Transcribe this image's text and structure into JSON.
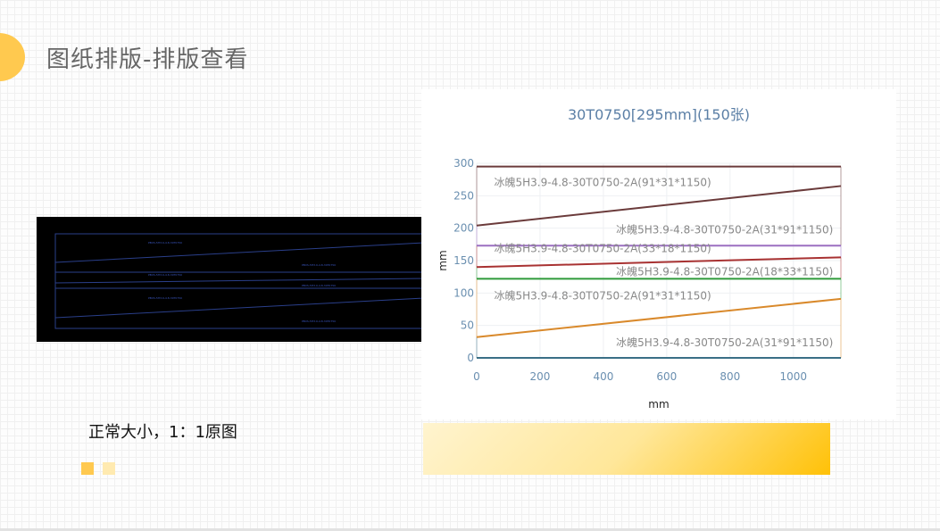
{
  "page": {
    "title": "图纸排版-排版查看",
    "caption": "正常大小，1：1原图"
  },
  "colors": {
    "accent": "#ffc94f",
    "chart_title": "#5b7fa6"
  },
  "preview": {
    "labels": [
      "PBXS-5H3.9-4.8-30T0750",
      "PBXS-5H3.9-4.8-30T0750",
      "PBXS-5H3.9-4.8-30T0750",
      "PBXS-5H3.9-4.8-30T0750",
      "PBXS-5H3.9-4.8-30T0750",
      "PBXS-5H3.9-4.8-30T0750"
    ]
  },
  "chart_data": {
    "type": "line",
    "title": "30T0750[295mm](150张)",
    "xlabel": "mm",
    "ylabel": "mm",
    "xlim": [
      0,
      1150
    ],
    "ylim": [
      0,
      300
    ],
    "xticks": [
      0,
      200,
      400,
      600,
      800,
      1000
    ],
    "yticks": [
      0,
      50,
      100,
      150,
      200,
      250,
      300
    ],
    "grid": true,
    "series": [
      {
        "x": [
          0,
          1150
        ],
        "y": [
          295,
          295
        ],
        "color": "#6b3b3b"
      },
      {
        "x": [
          0,
          1150
        ],
        "y": [
          204,
          265
        ],
        "color": "#6b3b3b"
      },
      {
        "x": [
          0,
          1150
        ],
        "y": [
          173,
          173
        ],
        "color": "#9b6fc1"
      },
      {
        "x": [
          0,
          1150
        ],
        "y": [
          140,
          155
        ],
        "color": "#a83232"
      },
      {
        "x": [
          0,
          1150
        ],
        "y": [
          122,
          122
        ],
        "color": "#2e9a3a"
      },
      {
        "x": [
          0,
          1150
        ],
        "y": [
          32,
          91
        ],
        "color": "#d9892b"
      },
      {
        "x": [
          0,
          1150
        ],
        "y": [
          0,
          0
        ],
        "color": "#3a6f86"
      }
    ],
    "annotations": [
      {
        "text": "冰魄5H3.9-4.8-30T0750-2A(91*31*1150)",
        "x": 55,
        "y": 265
      },
      {
        "text": "冰魄5H3.9-4.8-30T0750-2A(31*91*1150)",
        "x": 440,
        "y": 192
      },
      {
        "text": "冰魄5H3.9-4.8-30T0750-2A(33*18*1150)",
        "x": 55,
        "y": 163
      },
      {
        "text": "冰魄5H3.9-4.8-30T0750-2A(18*33*1150)",
        "x": 440,
        "y": 127
      },
      {
        "text": "冰魄5H3.9-4.8-30T0750-2A(91*31*1150)",
        "x": 55,
        "y": 90
      },
      {
        "text": "冰魄5H3.9-4.8-30T0750-2A(31*91*1150)",
        "x": 440,
        "y": 18
      }
    ]
  }
}
